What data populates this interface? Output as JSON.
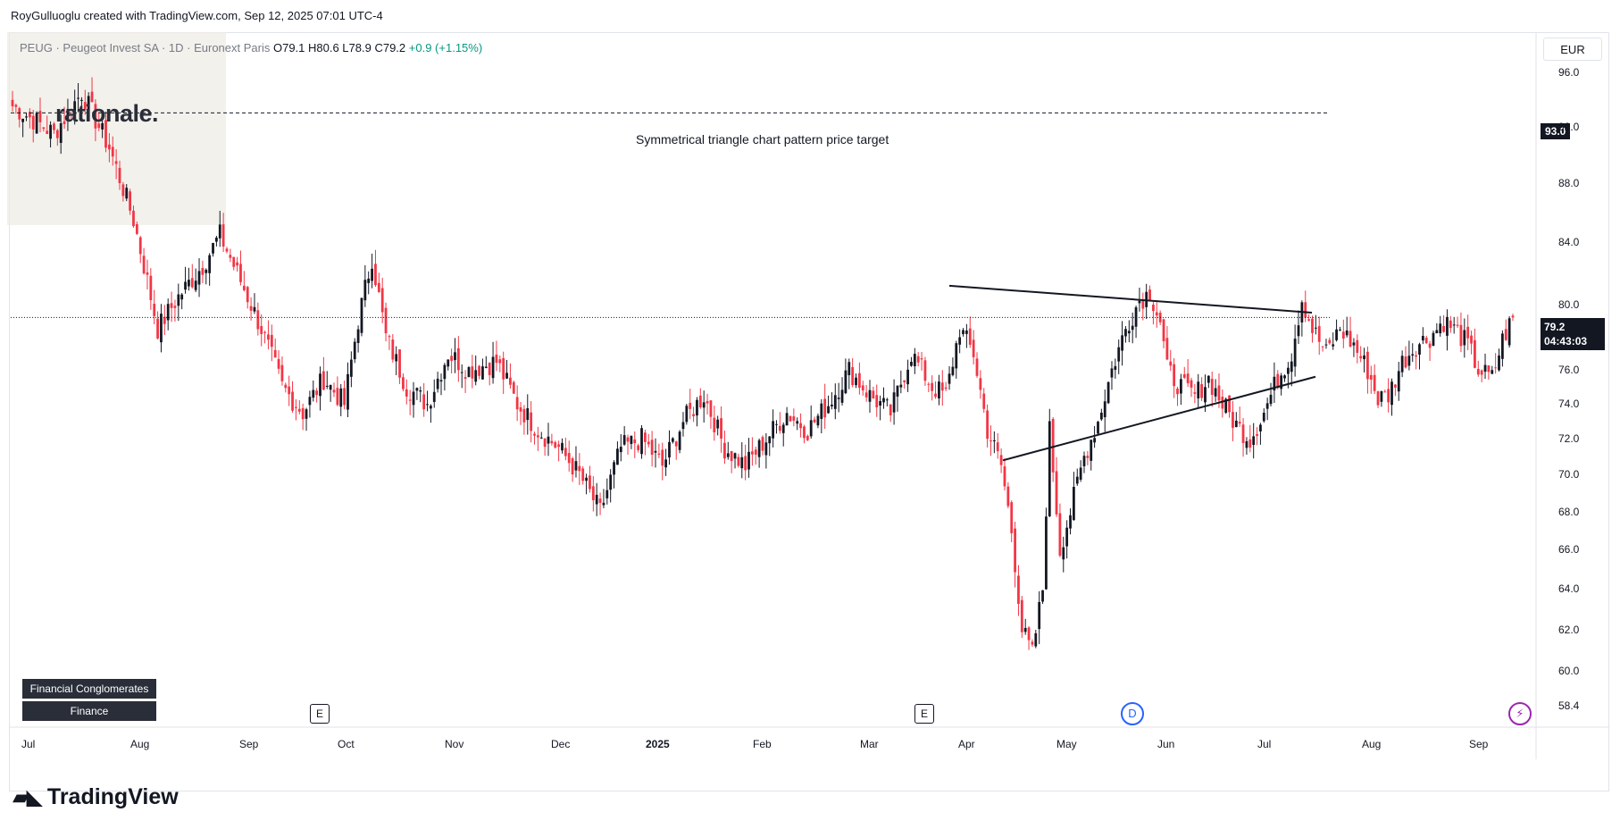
{
  "caption": "RoyGulluoglu created with TradingView.com, Sep 12, 2025 07:01 UTC-4",
  "legend": {
    "symbol": "PEUG · Peugeot Invest SA · 1D · Euronext Paris",
    "ohlc": "O79.1  H80.6  L78.9  C79.2",
    "change": "+0.9 (+1.15%)"
  },
  "logo": "rationale.",
  "currency": "EUR",
  "annotation": "Symmetrical triangle chart pattern price target",
  "target_label": "93.0",
  "last_price": "79.2",
  "countdown": "04:43:03",
  "tags": [
    "Financial Conglomerates",
    "Finance"
  ],
  "events": {
    "earnings": "E",
    "dividend": "D",
    "bolt": "⚡"
  },
  "footer": "TradingView",
  "chart_data": {
    "type": "candlestick",
    "y_ticks": [
      "96.0",
      "92.0",
      "88.0",
      "84.0",
      "80.0",
      "76.0",
      "74.0",
      "72.0",
      "70.0",
      "68.0",
      "66.0",
      "64.0",
      "62.0",
      "60.0",
      "58.4"
    ],
    "y_scale": "log",
    "ylim": [
      57.5,
      99.5
    ],
    "x_labels": [
      "Jul",
      "Aug",
      "Sep",
      "Oct",
      "Nov",
      "Dec",
      "2025",
      "Feb",
      "Mar",
      "Apr",
      "May",
      "Jun",
      "Jul",
      "Aug",
      "Sep"
    ],
    "anchors": [
      [
        0,
        93.5
      ],
      [
        12,
        91.5
      ],
      [
        20,
        94.5
      ],
      [
        28,
        90.5
      ],
      [
        35,
        85.5
      ],
      [
        42,
        78.5
      ],
      [
        48,
        80.5
      ],
      [
        55,
        82.5
      ],
      [
        60,
        84.5
      ],
      [
        66,
        81.5
      ],
      [
        72,
        78.5
      ],
      [
        78,
        75.0
      ],
      [
        84,
        73.5
      ],
      [
        90,
        75.5
      ],
      [
        96,
        74.0
      ],
      [
        100,
        79.0
      ],
      [
        104,
        83.0
      ],
      [
        108,
        78.0
      ],
      [
        114,
        75.0
      ],
      [
        120,
        74.0
      ],
      [
        126,
        77.0
      ],
      [
        132,
        76.0
      ],
      [
        140,
        76.5
      ],
      [
        146,
        74.0
      ],
      [
        152,
        72.5
      ],
      [
        158,
        71.5
      ],
      [
        164,
        70.0
      ],
      [
        170,
        68.0
      ],
      [
        176,
        71.5
      ],
      [
        182,
        72.0
      ],
      [
        188,
        70.5
      ],
      [
        194,
        73.0
      ],
      [
        200,
        74.5
      ],
      [
        206,
        71.5
      ],
      [
        212,
        70.5
      ],
      [
        218,
        72.0
      ],
      [
        224,
        73.5
      ],
      [
        230,
        72.5
      ],
      [
        236,
        74.0
      ],
      [
        242,
        76.0
      ],
      [
        248,
        74.5
      ],
      [
        254,
        73.5
      ],
      [
        260,
        77.0
      ],
      [
        266,
        75.0
      ],
      [
        270,
        74.5
      ],
      [
        274,
        78.5
      ],
      [
        278,
        77.0
      ],
      [
        282,
        72.5
      ],
      [
        286,
        70.5
      ],
      [
        289,
        67.0
      ],
      [
        292,
        62.0
      ],
      [
        295,
        60.8
      ],
      [
        298,
        64.0
      ],
      [
        300,
        72.5
      ],
      [
        303,
        66.0
      ],
      [
        306,
        68.0
      ],
      [
        310,
        71.0
      ],
      [
        314,
        73.0
      ],
      [
        318,
        76.0
      ],
      [
        322,
        78.5
      ],
      [
        326,
        80.3
      ],
      [
        329,
        80.8
      ],
      [
        332,
        79.0
      ],
      [
        334,
        76.0
      ],
      [
        338,
        75.0
      ],
      [
        342,
        74.5
      ],
      [
        346,
        75.5
      ],
      [
        350,
        74.0
      ],
      [
        354,
        72.8
      ],
      [
        358,
        72.0
      ],
      [
        362,
        73.5
      ],
      [
        366,
        75.5
      ],
      [
        370,
        77.0
      ],
      [
        373,
        80.4
      ],
      [
        376,
        78.5
      ],
      [
        380,
        77.0
      ],
      [
        384,
        78.5
      ],
      [
        388,
        77.5
      ],
      [
        392,
        76.0
      ],
      [
        395,
        74.3
      ],
      [
        398,
        74.5
      ],
      [
        402,
        76.5
      ],
      [
        406,
        77.5
      ],
      [
        410,
        78.0
      ],
      [
        414,
        79.0
      ],
      [
        418,
        78.3
      ],
      [
        421,
        77.5
      ],
      [
        424,
        76.0
      ],
      [
        428,
        75.5
      ],
      [
        431,
        77.8
      ],
      [
        434,
        79.2
      ]
    ],
    "n_candles": 435,
    "lines": [
      {
        "from": [
          1063,
          81.2
        ],
        "to": [
          1469,
          79.5
        ],
        "style": "solid"
      },
      {
        "from": [
          1123,
          70.8
        ],
        "to": [
          1473,
          75.6
        ],
        "style": "solid"
      },
      {
        "from": [
          0,
          93.0
        ],
        "to": [
          1489,
          93.0
        ],
        "style": "dashed"
      },
      {
        "from": [
          0,
          79.2
        ],
        "to": [
          1489,
          79.2
        ],
        "style": "dotted"
      }
    ]
  }
}
